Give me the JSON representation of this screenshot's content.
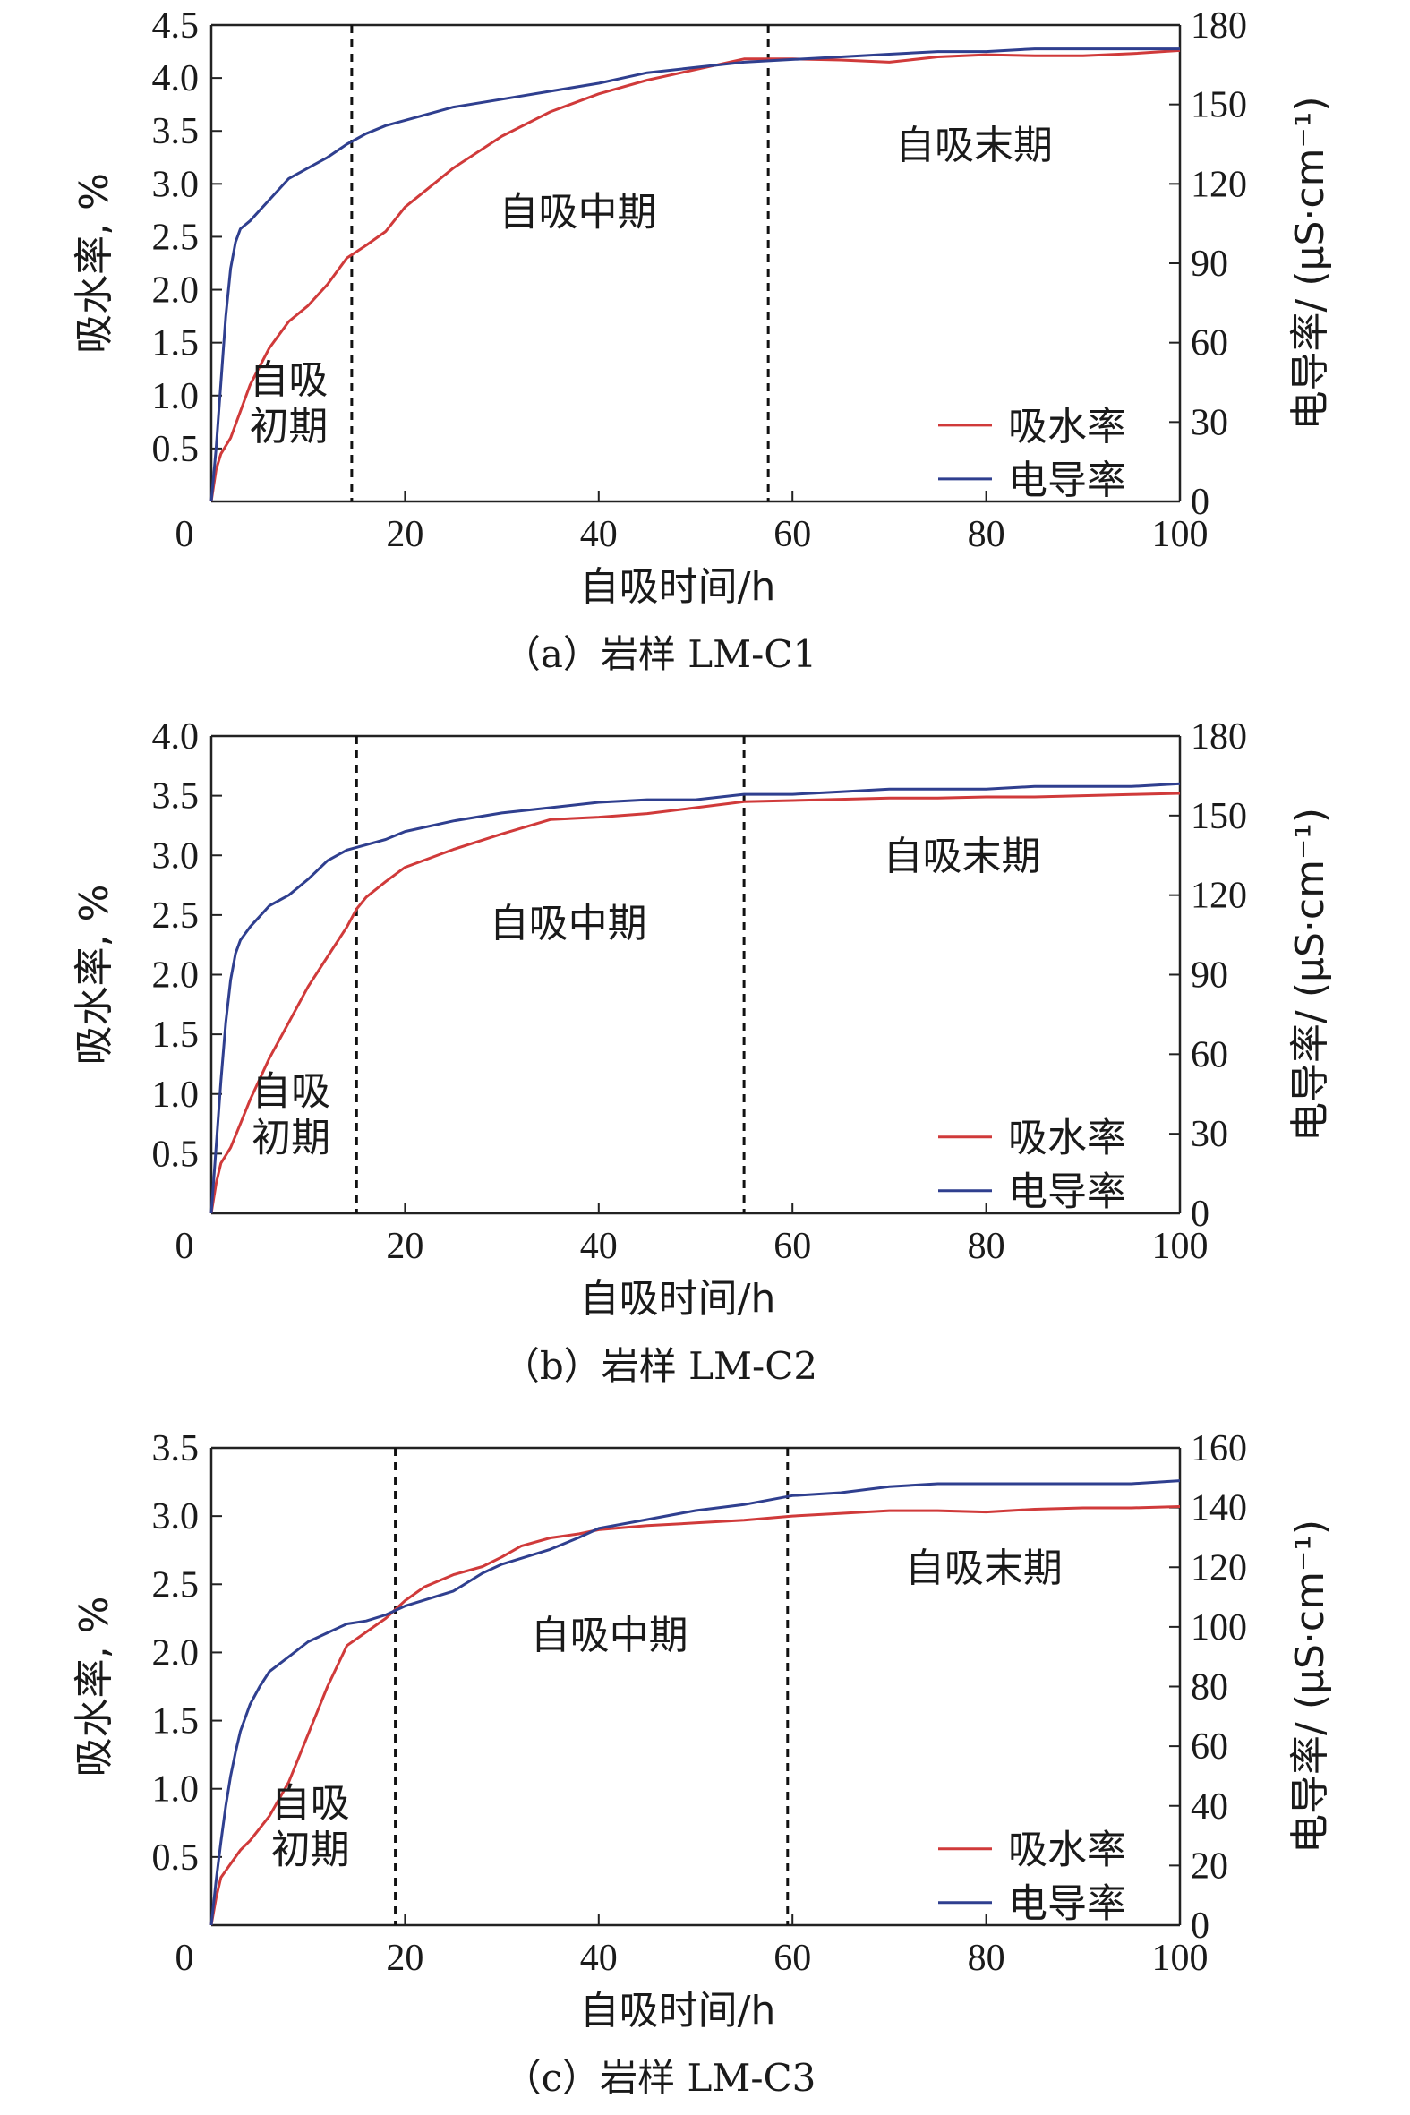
{
  "figure": {
    "colors": {
      "water": "#d03a3a",
      "conductivity": "#2f3f8f",
      "axis": "#222222"
    }
  },
  "chart_data": [
    {
      "type": "line",
      "caption": "（a）岩样 LM-C1",
      "xlabel": "自吸时间/h",
      "ylabel_left": "吸水率, %",
      "ylabel_right": "电导率/ (μS·cm⁻¹)",
      "xlim": [
        0,
        100
      ],
      "ylim_left": [
        0,
        4.5
      ],
      "ylim_right": [
        0,
        180
      ],
      "xticks": [
        "0",
        "20",
        "40",
        "60",
        "80",
        "100"
      ],
      "yticks_left": [
        "0.5",
        "1.0",
        "1.5",
        "2.0",
        "2.5",
        "3.0",
        "3.5",
        "4.0",
        "4.5"
      ],
      "yticks_right": [
        "0",
        "30",
        "60",
        "90",
        "120",
        "150",
        "180"
      ],
      "legend": {
        "position": "bottom-right",
        "items": [
          "吸水率",
          "电导率"
        ]
      },
      "phases": [
        "自吸初期",
        "自吸中期",
        "自吸末期"
      ],
      "phase_early_lines": [
        "自吸",
        "初期"
      ],
      "boundaries": [
        14.5,
        57.5
      ],
      "series": [
        {
          "name": "吸水率",
          "axis": "left",
          "x": [
            0,
            0.5,
            1,
            2,
            3,
            4,
            6,
            8,
            10,
            12,
            14,
            16,
            18,
            20,
            25,
            30,
            35,
            40,
            45,
            50,
            55,
            60,
            65,
            70,
            75,
            80,
            85,
            90,
            95,
            100
          ],
          "y": [
            0,
            0.3,
            0.45,
            0.6,
            0.85,
            1.1,
            1.45,
            1.7,
            1.85,
            2.05,
            2.3,
            2.42,
            2.55,
            2.78,
            3.15,
            3.45,
            3.68,
            3.85,
            3.98,
            4.08,
            4.18,
            4.18,
            4.17,
            4.15,
            4.2,
            4.22,
            4.21,
            4.21,
            4.23,
            4.26
          ]
        },
        {
          "name": "电导率",
          "axis": "right",
          "x": [
            0,
            0.5,
            1,
            1.5,
            2,
            2.5,
            3,
            4,
            5,
            6,
            8,
            10,
            12,
            14,
            16,
            18,
            20,
            25,
            30,
            35,
            40,
            45,
            50,
            55,
            60,
            65,
            70,
            75,
            80,
            85,
            90,
            95,
            100
          ],
          "y": [
            0,
            20,
            45,
            70,
            88,
            98,
            103,
            106,
            110,
            114,
            122,
            126,
            130,
            135,
            139,
            142,
            144,
            149,
            152,
            155,
            158,
            162,
            164,
            166,
            167,
            168,
            169,
            170,
            170,
            171,
            171,
            171,
            171
          ]
        }
      ]
    },
    {
      "type": "line",
      "caption": "（b）岩样 LM-C2",
      "xlabel": "自吸时间/h",
      "ylabel_left": "吸水率, %",
      "ylabel_right": "电导率/ (μS·cm⁻¹)",
      "xlim": [
        0,
        100
      ],
      "ylim_left": [
        0,
        4.0
      ],
      "ylim_right": [
        0,
        180
      ],
      "xticks": [
        "0",
        "20",
        "40",
        "60",
        "80",
        "100"
      ],
      "yticks_left": [
        "0.5",
        "1.0",
        "1.5",
        "2.0",
        "2.5",
        "3.0",
        "3.5",
        "4.0"
      ],
      "yticks_right": [
        "0",
        "30",
        "60",
        "90",
        "120",
        "150",
        "180"
      ],
      "legend": {
        "position": "bottom-right",
        "items": [
          "吸水率",
          "电导率"
        ]
      },
      "phases": [
        "自吸初期",
        "自吸中期",
        "自吸末期"
      ],
      "phase_early_lines": [
        "自吸",
        "初期"
      ],
      "boundaries": [
        15,
        55
      ],
      "series": [
        {
          "name": "吸水率",
          "axis": "left",
          "x": [
            0,
            0.5,
            1,
            2,
            3,
            4,
            6,
            8,
            10,
            12,
            14,
            15,
            16,
            18,
            20,
            25,
            30,
            35,
            40,
            45,
            50,
            55,
            60,
            65,
            70,
            75,
            80,
            85,
            90,
            95,
            100
          ],
          "y": [
            0,
            0.25,
            0.42,
            0.55,
            0.75,
            0.95,
            1.3,
            1.6,
            1.9,
            2.15,
            2.4,
            2.55,
            2.65,
            2.78,
            2.9,
            3.05,
            3.18,
            3.3,
            3.32,
            3.35,
            3.4,
            3.45,
            3.46,
            3.47,
            3.48,
            3.48,
            3.49,
            3.49,
            3.5,
            3.51,
            3.52
          ]
        },
        {
          "name": "电导率",
          "axis": "right",
          "x": [
            0,
            0.5,
            1,
            1.5,
            2,
            2.5,
            3,
            4,
            5,
            6,
            8,
            10,
            12,
            14,
            16,
            18,
            20,
            25,
            30,
            35,
            40,
            45,
            50,
            55,
            60,
            65,
            70,
            75,
            80,
            85,
            90,
            95,
            100
          ],
          "y": [
            0,
            25,
            50,
            72,
            88,
            98,
            103,
            108,
            112,
            116,
            120,
            126,
            133,
            137,
            139,
            141,
            144,
            148,
            151,
            153,
            155,
            156,
            156,
            158,
            158,
            159,
            160,
            160,
            160,
            161,
            161,
            161,
            162
          ]
        }
      ]
    },
    {
      "type": "line",
      "caption": "（c）岩样 LM-C3",
      "xlabel": "自吸时间/h",
      "ylabel_left": "吸水率, %",
      "ylabel_right": "电导率/ (μS·cm⁻¹)",
      "xlim": [
        0,
        100
      ],
      "ylim_left": [
        0,
        3.5
      ],
      "ylim_right": [
        0,
        160
      ],
      "xticks": [
        "0",
        "20",
        "40",
        "60",
        "80",
        "100"
      ],
      "yticks_left": [
        "0.5",
        "1.0",
        "1.5",
        "2.0",
        "2.5",
        "3.0",
        "3.5"
      ],
      "yticks_right": [
        "0",
        "20",
        "40",
        "60",
        "80",
        "100",
        "120",
        "140",
        "160"
      ],
      "legend": {
        "position": "bottom-right",
        "items": [
          "吸水率",
          "电导率"
        ]
      },
      "phases": [
        "自吸初期",
        "自吸中期",
        "自吸末期"
      ],
      "phase_early_lines": [
        "自吸",
        "初期"
      ],
      "boundaries": [
        19,
        59.5
      ],
      "series": [
        {
          "name": "吸水率",
          "axis": "left",
          "x": [
            0,
            0.5,
            1,
            2,
            3,
            4,
            6,
            8,
            10,
            12,
            14,
            16,
            18,
            20,
            22,
            25,
            28,
            30,
            32,
            35,
            38,
            40,
            45,
            50,
            55,
            60,
            65,
            70,
            75,
            80,
            85,
            90,
            95,
            100
          ],
          "y": [
            0,
            0.2,
            0.35,
            0.45,
            0.55,
            0.62,
            0.8,
            1.05,
            1.4,
            1.75,
            2.05,
            2.15,
            2.25,
            2.38,
            2.48,
            2.57,
            2.63,
            2.7,
            2.78,
            2.84,
            2.87,
            2.9,
            2.93,
            2.95,
            2.97,
            3.0,
            3.02,
            3.04,
            3.04,
            3.03,
            3.05,
            3.06,
            3.06,
            3.07
          ]
        },
        {
          "name": "电导率",
          "axis": "right",
          "x": [
            0,
            0.5,
            1,
            1.5,
            2,
            2.5,
            3,
            4,
            5,
            6,
            8,
            10,
            12,
            14,
            16,
            18,
            20,
            22,
            25,
            28,
            30,
            32,
            35,
            38,
            40,
            45,
            50,
            55,
            60,
            65,
            70,
            75,
            80,
            85,
            90,
            95,
            100
          ],
          "y": [
            0,
            15,
            28,
            40,
            50,
            58,
            65,
            74,
            80,
            85,
            90,
            95,
            98,
            101,
            102,
            104,
            107,
            109,
            112,
            118,
            121,
            123,
            126,
            130,
            133,
            136,
            139,
            141,
            144,
            145,
            147,
            148,
            148,
            148,
            148,
            148,
            149
          ]
        }
      ]
    }
  ]
}
